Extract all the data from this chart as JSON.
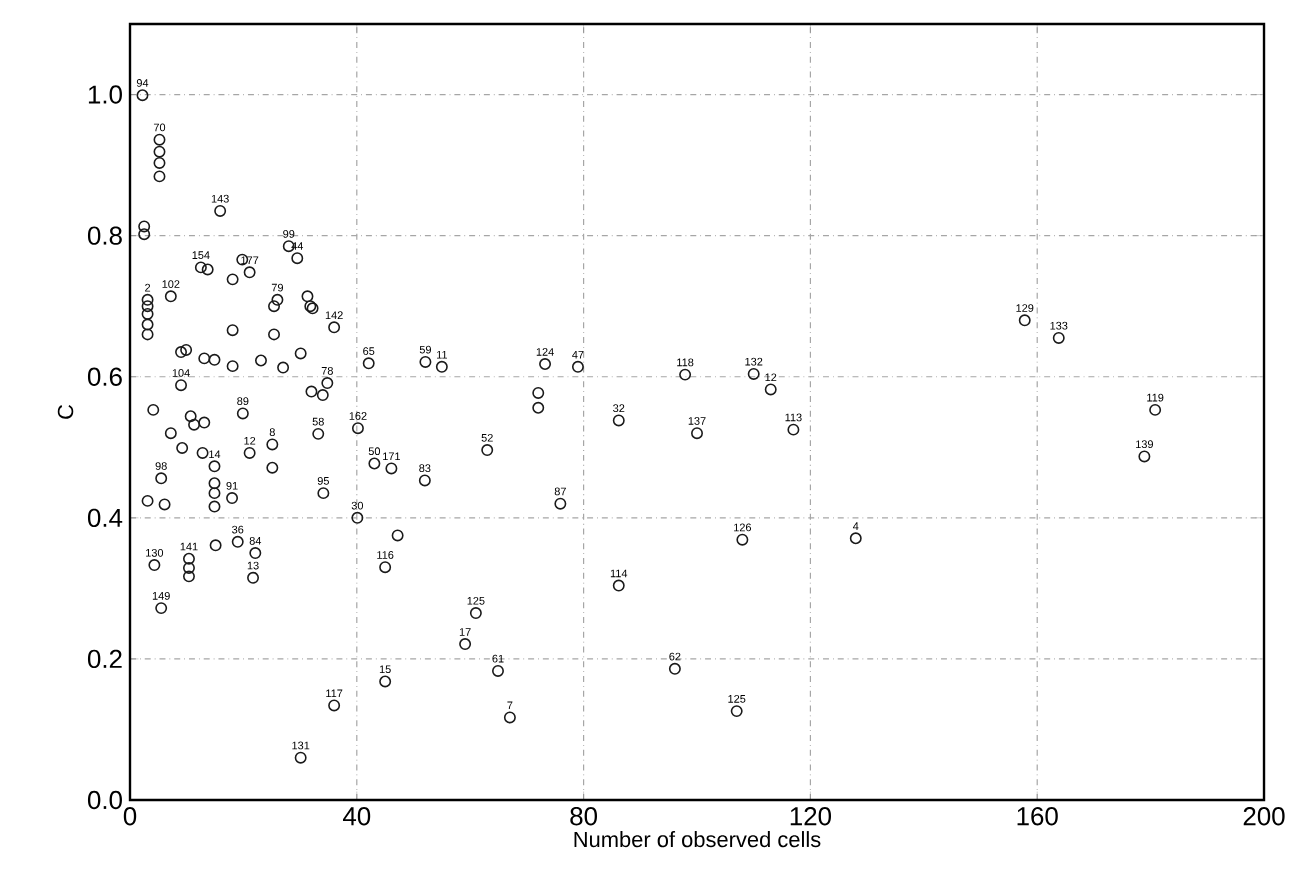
{
  "chart_data": {
    "type": "scatter",
    "xlabel": "Number of observed cells",
    "ylabel": "C",
    "xlim": [
      0,
      200
    ],
    "ylim": [
      0,
      1.1
    ],
    "xticks": [
      0,
      40,
      80,
      120,
      160,
      200
    ],
    "yticks": [
      {
        "value": 0,
        "label": "0.0"
      },
      {
        "value": 0.2,
        "label": "0.2"
      },
      {
        "value": 0.4,
        "label": "0.4"
      },
      {
        "value": 0.6,
        "label": "0.6"
      },
      {
        "value": 0.8,
        "label": "0.8"
      },
      {
        "value": 1.0,
        "label": "1.0"
      }
    ],
    "grid": true,
    "marker": "circle",
    "series": [
      {
        "color": "#1a1a1a",
        "x": [
          2.2,
          5.2,
          5.2,
          5.2,
          5.2,
          2.5,
          2.5,
          15.9,
          28.0,
          29.5,
          21.1,
          19.8,
          18.1,
          12.5,
          13.7,
          7.2,
          3.1,
          3.1,
          3.1,
          3.1,
          3.1,
          26.0,
          25.4,
          18.1,
          9.0,
          13.1,
          14.9,
          18.1,
          23.1,
          25.4,
          27.0,
          30.1,
          31.3,
          32.2,
          36.0,
          31.8,
          32.0,
          34.8,
          34.0,
          9.0,
          4.1,
          10.7,
          13.1,
          9.9,
          19.9,
          7.2,
          9.2,
          12.8,
          11.3,
          14.9,
          21.1,
          25.1,
          25.1,
          33.2,
          34.1,
          40.2,
          3.1,
          6.1,
          5.5,
          14.9,
          14.9,
          14.9,
          18.0,
          15.1,
          19.0,
          22.1,
          21.7,
          4.3,
          10.4,
          10.4,
          10.4,
          5.5,
          40.1,
          47.2,
          45.0,
          45.0,
          36.0,
          30.1,
          61.0,
          59.1,
          64.9,
          67.0,
          86.2,
          96.1,
          75.9,
          63.0,
          52.0,
          43.1,
          46.1,
          42.1,
          52.1,
          55.0,
          73.2,
          79.0,
          72.0,
          72.0,
          86.2,
          97.9,
          100.0,
          110.0,
          113.0,
          117.0,
          157.8,
          163.8,
          180.8,
          178.9,
          108.0,
          128.0,
          107.0
        ],
        "values": [
          0.999,
          0.936,
          0.919,
          0.903,
          0.884,
          0.813,
          0.802,
          0.835,
          0.785,
          0.768,
          0.748,
          0.766,
          0.738,
          0.755,
          0.752,
          0.714,
          0.709,
          0.7,
          0.689,
          0.674,
          0.66,
          0.709,
          0.7,
          0.666,
          0.635,
          0.626,
          0.624,
          0.615,
          0.623,
          0.66,
          0.613,
          0.633,
          0.714,
          0.697,
          0.67,
          0.7,
          0.579,
          0.591,
          0.574,
          0.588,
          0.553,
          0.544,
          0.535,
          0.638,
          0.548,
          0.52,
          0.499,
          0.492,
          0.532,
          0.473,
          0.492,
          0.504,
          0.471,
          0.519,
          0.435,
          0.527,
          0.424,
          0.419,
          0.456,
          0.449,
          0.435,
          0.416,
          0.428,
          0.361,
          0.366,
          0.35,
          0.315,
          0.333,
          0.342,
          0.329,
          0.317,
          0.272,
          0.4,
          0.375,
          0.33,
          0.168,
          0.134,
          0.06,
          0.265,
          0.221,
          0.183,
          0.117,
          0.304,
          0.186,
          0.42,
          0.496,
          0.453,
          0.477,
          0.47,
          0.619,
          0.621,
          0.614,
          0.618,
          0.614,
          0.577,
          0.556,
          0.538,
          0.603,
          0.52,
          0.604,
          0.582,
          0.525,
          0.68,
          0.655,
          0.553,
          0.487,
          0.369,
          0.371,
          0.126
        ]
      }
    ],
    "annotations": [
      {
        "text": "94",
        "x": 2.2,
        "y": 0.999
      },
      {
        "text": "70",
        "x": 5.2,
        "y": 0.936
      },
      {
        "text": "143",
        "x": 15.9,
        "y": 0.835
      },
      {
        "text": "99",
        "x": 28.0,
        "y": 0.785
      },
      {
        "text": "44",
        "x": 29.5,
        "y": 0.768
      },
      {
        "text": "177",
        "x": 21.1,
        "y": 0.748
      },
      {
        "text": "154",
        "x": 12.5,
        "y": 0.755
      },
      {
        "text": "102",
        "x": 7.2,
        "y": 0.714
      },
      {
        "text": "2",
        "x": 3.1,
        "y": 0.709
      },
      {
        "text": "79",
        "x": 26.0,
        "y": 0.709
      },
      {
        "text": "142",
        "x": 36.0,
        "y": 0.67
      },
      {
        "text": "78",
        "x": 34.8,
        "y": 0.591
      },
      {
        "text": "104",
        "x": 9.0,
        "y": 0.588
      },
      {
        "text": "89",
        "x": 19.9,
        "y": 0.548
      },
      {
        "text": "12",
        "x": 21.1,
        "y": 0.492
      },
      {
        "text": "8",
        "x": 25.1,
        "y": 0.504
      },
      {
        "text": "14",
        "x": 14.9,
        "y": 0.473
      },
      {
        "text": "58",
        "x": 33.2,
        "y": 0.519
      },
      {
        "text": "95",
        "x": 34.1,
        "y": 0.435
      },
      {
        "text": "98",
        "x": 5.5,
        "y": 0.456
      },
      {
        "text": "91",
        "x": 18.0,
        "y": 0.428
      },
      {
        "text": "36",
        "x": 19.0,
        "y": 0.366
      },
      {
        "text": "84",
        "x": 22.1,
        "y": 0.35
      },
      {
        "text": "13",
        "x": 21.7,
        "y": 0.315
      },
      {
        "text": "130",
        "x": 4.3,
        "y": 0.333
      },
      {
        "text": "141",
        "x": 10.4,
        "y": 0.342
      },
      {
        "text": "149",
        "x": 5.5,
        "y": 0.272
      },
      {
        "text": "162",
        "x": 40.2,
        "y": 0.527
      },
      {
        "text": "65",
        "x": 42.1,
        "y": 0.619
      },
      {
        "text": "30",
        "x": 40.1,
        "y": 0.4
      },
      {
        "text": "116",
        "x": 45.0,
        "y": 0.33
      },
      {
        "text": "15",
        "x": 45.0,
        "y": 0.168
      },
      {
        "text": "117",
        "x": 36.0,
        "y": 0.134
      },
      {
        "text": "131",
        "x": 30.1,
        "y": 0.06
      },
      {
        "text": "50",
        "x": 43.1,
        "y": 0.477
      },
      {
        "text": "171",
        "x": 46.1,
        "y": 0.47
      },
      {
        "text": "83",
        "x": 52.0,
        "y": 0.453
      },
      {
        "text": "59",
        "x": 52.1,
        "y": 0.621
      },
      {
        "text": "11",
        "x": 55.0,
        "y": 0.614
      },
      {
        "text": "52",
        "x": 63.0,
        "y": 0.496
      },
      {
        "text": "125",
        "x": 61.0,
        "y": 0.265
      },
      {
        "text": "17",
        "x": 59.1,
        "y": 0.221
      },
      {
        "text": "61",
        "x": 64.9,
        "y": 0.183
      },
      {
        "text": "7",
        "x": 67.0,
        "y": 0.117
      },
      {
        "text": "87",
        "x": 75.9,
        "y": 0.42
      },
      {
        "text": "124",
        "x": 73.2,
        "y": 0.618
      },
      {
        "text": "47",
        "x": 79.0,
        "y": 0.614
      },
      {
        "text": "32",
        "x": 86.2,
        "y": 0.538
      },
      {
        "text": "114",
        "x": 86.2,
        "y": 0.304
      },
      {
        "text": "62",
        "x": 96.1,
        "y": 0.186
      },
      {
        "text": "118",
        "x": 97.9,
        "y": 0.603
      },
      {
        "text": "137",
        "x": 100.0,
        "y": 0.52
      },
      {
        "text": "132",
        "x": 110.0,
        "y": 0.604
      },
      {
        "text": "12",
        "x": 113.0,
        "y": 0.582
      },
      {
        "text": "113",
        "x": 117.0,
        "y": 0.525
      },
      {
        "text": "126",
        "x": 108.0,
        "y": 0.369
      },
      {
        "text": "4",
        "x": 128.0,
        "y": 0.371
      },
      {
        "text": "125",
        "x": 107.0,
        "y": 0.126
      },
      {
        "text": "129",
        "x": 157.8,
        "y": 0.68
      },
      {
        "text": "133",
        "x": 163.8,
        "y": 0.655
      },
      {
        "text": "119",
        "x": 180.8,
        "y": 0.553
      },
      {
        "text": "139",
        "x": 178.9,
        "y": 0.487
      }
    ]
  }
}
